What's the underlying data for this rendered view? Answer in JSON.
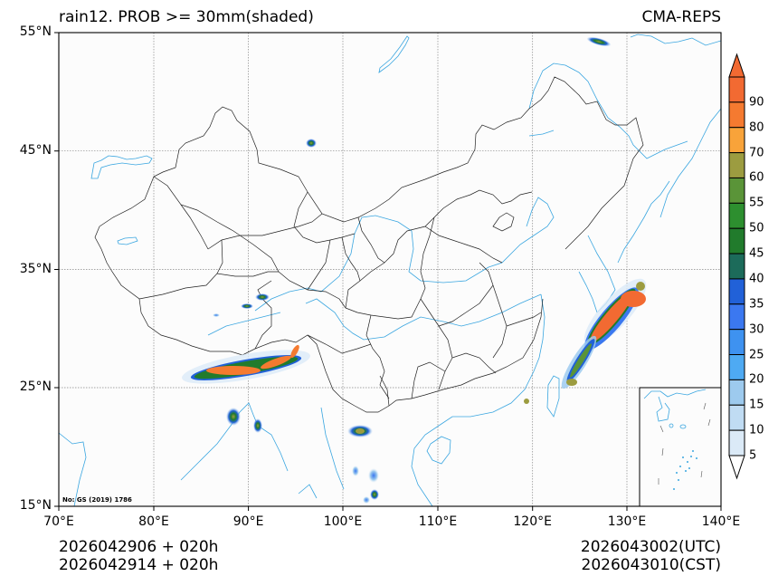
{
  "header": {
    "title": "rain12. PROB >= 30mm(shaded)",
    "source": "CMA-REPS"
  },
  "axes": {
    "lat_labels": [
      "55°N",
      "45°N",
      "35°N",
      "25°N",
      "15°N"
    ],
    "lon_labels": [
      "70°E",
      "80°E",
      "90°E",
      "100°E",
      "110°E",
      "120°E",
      "130°E",
      "140°E"
    ],
    "extent": {
      "lon_min": 70,
      "lon_max": 140,
      "lat_min": 15,
      "lat_max": 55
    }
  },
  "map": {
    "approval_number": "No: GS (2019) 1786",
    "background_color": "#fcfcfc",
    "border_color": "#222222",
    "river_color": "#3aa6e0",
    "grid_style": "dotted gray",
    "inset": "South China Sea islands"
  },
  "colorbar": {
    "levels": [
      "5",
      "10",
      "15",
      "20",
      "25",
      "30",
      "35",
      "40",
      "45",
      "50",
      "55",
      "60",
      "70",
      "80",
      "90"
    ],
    "colors": [
      "#dbeaf7",
      "#c0dcf3",
      "#9dcaee",
      "#4eaaf3",
      "#3e92f0",
      "#3b78f0",
      "#2161d8",
      "#1c6b5a",
      "#217b2c",
      "#2d8f2f",
      "#5a9438",
      "#9c9c40",
      "#f8a33a",
      "#f57a30",
      "#f26a32"
    ],
    "extend": "both"
  },
  "footer": {
    "init_utc_line": "2026042906  +  020h",
    "init_cst_line": "2026042914  +  020h",
    "valid_utc": "2026043002(UTC)",
    "valid_cst": "2026043010(CST)"
  }
}
